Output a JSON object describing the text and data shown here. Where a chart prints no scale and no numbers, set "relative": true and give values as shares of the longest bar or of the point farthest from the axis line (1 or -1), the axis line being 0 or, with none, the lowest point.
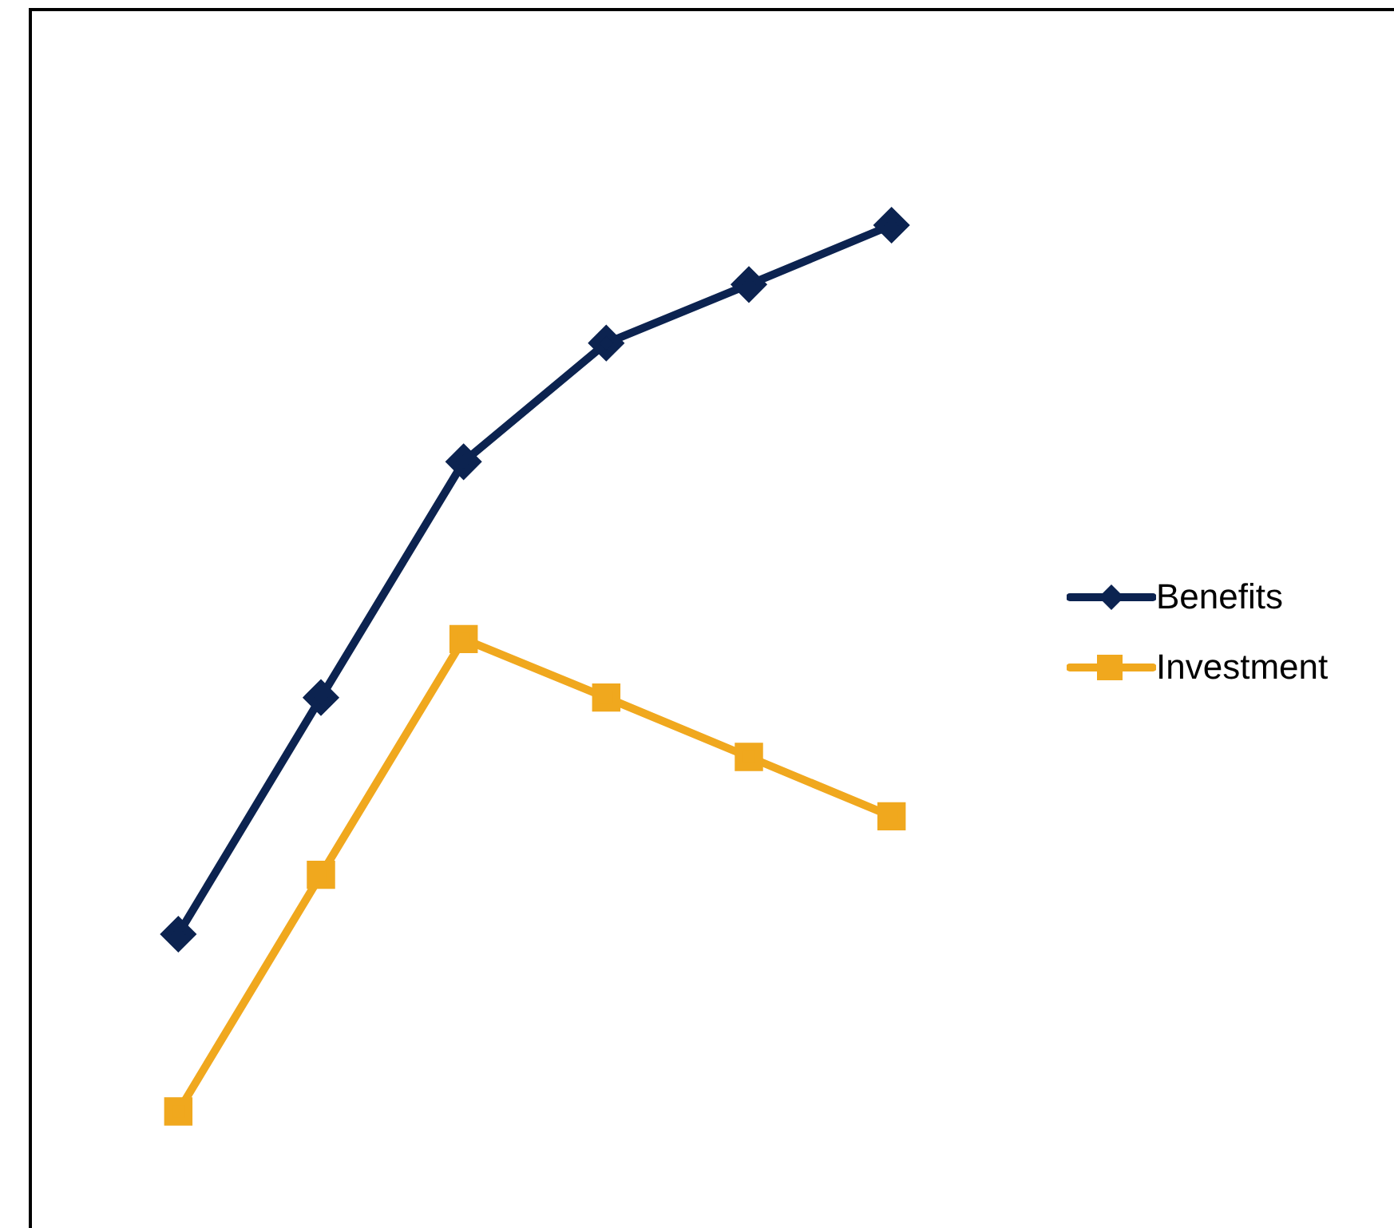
{
  "chart_data": {
    "type": "line",
    "relative": true,
    "categories": [
      null,
      null,
      null,
      null,
      null,
      null
    ],
    "legend": "right",
    "grid": false,
    "series": [
      {
        "name": "Benefits",
        "color": "#0c2350",
        "marker": "diamond",
        "values": [
          0.2,
          0.467,
          0.733,
          0.867,
          0.933,
          1
        ]
      },
      {
        "name": "Investment",
        "color": "#f0a81e",
        "marker": "square",
        "values": [
          0,
          0.267,
          0.533,
          0.467,
          0.4,
          0.333
        ]
      }
    ]
  }
}
